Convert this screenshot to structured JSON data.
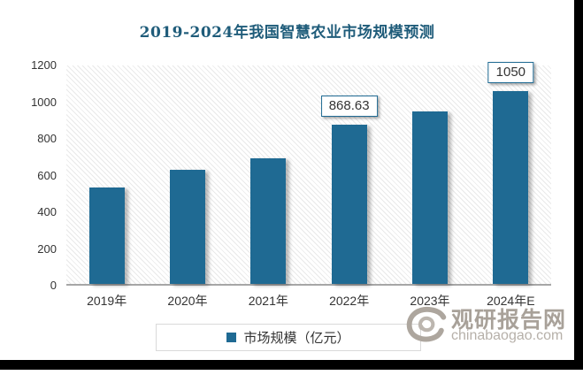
{
  "title": {
    "text": "2019-2024年我国智慧农业市场规模预测"
  },
  "legend": {
    "label": "市场规模（亿元）"
  },
  "watermark": {
    "site_name": "观研报告网",
    "domain": "chinabaogao.com",
    "logo": "swirl-logo"
  },
  "colors": {
    "bar": "#1F6A93",
    "title_text": "#1F5C7A",
    "axis_text": "#333333",
    "axis_line": "#A6A6A6",
    "plot_hatch": "#E9E9E9",
    "label_box_border": "#1F6A93",
    "legend_border": "#D9D9D9",
    "watermark_text": "#A8A199",
    "frame": "#000000"
  },
  "chart_data": {
    "type": "bar",
    "title": "2019-2024年我国智慧农业市场规模预测",
    "categories": [
      "2019年",
      "2020年",
      "2021年",
      "2022年",
      "2023年",
      "2024年E"
    ],
    "series": [
      {
        "name": "市场规模（亿元）",
        "values": [
          525,
          620,
          685,
          868.63,
          940,
          1050
        ],
        "data_labels": [
          "",
          "",
          "",
          "868.63",
          "",
          "1050"
        ]
      }
    ],
    "xlabel": "",
    "ylabel": "",
    "ylim": [
      0,
      1200
    ],
    "yticks": [
      0,
      200,
      400,
      600,
      800,
      1000,
      1200
    ],
    "grid": false,
    "legend_position": "bottom",
    "plot_background": "diagonal-hatch"
  }
}
